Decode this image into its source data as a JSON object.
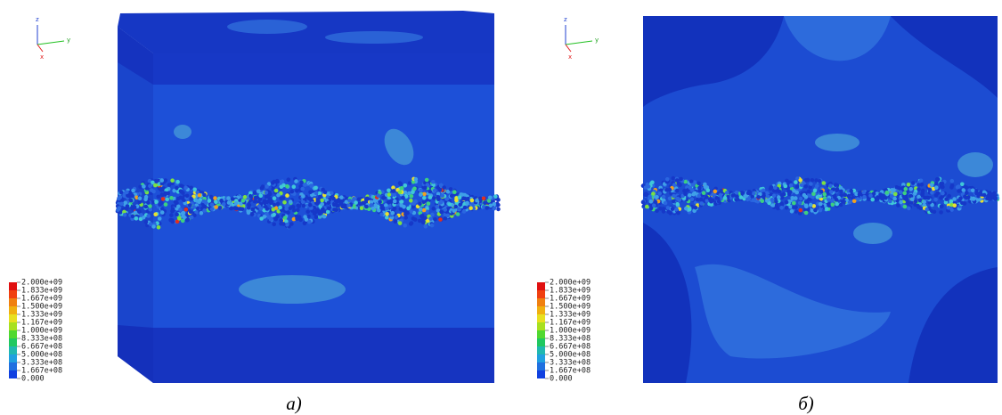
{
  "panels": [
    {
      "axes": {
        "z": "z",
        "x": "x",
        "y": "y"
      },
      "legend": {
        "labels": [
          "2.000e+09",
          "1.833e+09",
          "1.667e+09",
          "1.500e+09",
          "1.333e+09",
          "1.167e+09",
          "1.000e+09",
          "8.333e+08",
          "6.667e+08",
          "5.000e+08",
          "3.333e+08",
          "1.667e+08",
          "0.000"
        ]
      },
      "caption": "а)"
    },
    {
      "axes": {
        "z": "z",
        "x": "x",
        "y": "y"
      },
      "legend": {
        "labels": [
          "2.000e+09",
          "1.833e+09",
          "1.667e+09",
          "1.500e+09",
          "1.333e+09",
          "1.167e+09",
          "1.000e+09",
          "8.333e+08",
          "6.667e+08",
          "5.000e+08",
          "3.333e+08",
          "1.667e+08",
          "0.000"
        ]
      },
      "caption": "б)"
    }
  ]
}
